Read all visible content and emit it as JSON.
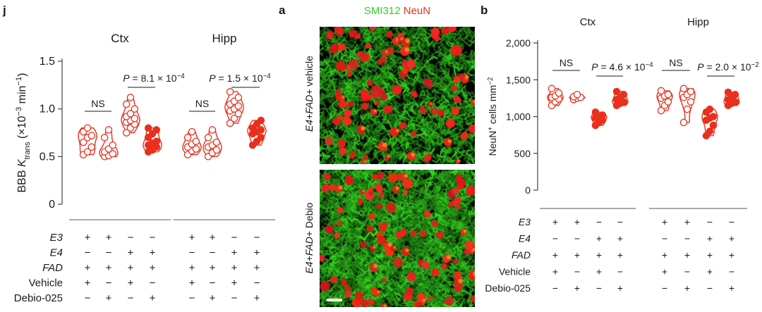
{
  "colors": {
    "red": "#e8301c",
    "green": "#2fd12c",
    "axis": "#333333"
  },
  "panel_j": {
    "letter": "j",
    "region_titles": [
      "Ctx",
      "Hipp"
    ],
    "ylabel_parts": {
      "pre": "BBB ",
      "K": "K",
      "sub": "trans",
      "mid": " (×10",
      "sup1": "−3",
      "mid2": " min",
      "sup2": "−1",
      "post": ")"
    },
    "yticks": [
      "0",
      "0.5",
      "1.0",
      "1.5"
    ],
    "ns_label": "NS",
    "p_ctx": {
      "pre": "P",
      "mid": " = 8.1 × 10",
      "sup": "−4"
    },
    "p_hipp": {
      "pre": "P",
      "mid": " = 1.5 × 10",
      "sup": "−4"
    },
    "table_rows": [
      "E3",
      "E4",
      "FAD",
      "Vehicle",
      "Debio-025"
    ],
    "table_italic": [
      true,
      true,
      true,
      false,
      false
    ],
    "table_values": [
      [
        "+",
        "+",
        "−",
        "−"
      ],
      [
        "−",
        "−",
        "+",
        "+"
      ],
      [
        "+",
        "+",
        "+",
        "+"
      ],
      [
        "+",
        "−",
        "+",
        "−"
      ],
      [
        "−",
        "+",
        "−",
        "+"
      ]
    ]
  },
  "panel_a": {
    "letter": "a",
    "stain_green": "SMI312",
    "stain_red": "NeuN",
    "top_label": {
      "geno": "E4+FAD+",
      "treat": " vehicle"
    },
    "bottom_label": {
      "geno": "E4+FAD+",
      "treat": " Debio"
    }
  },
  "panel_b": {
    "letter": "b",
    "region_titles": [
      "Ctx",
      "Hipp"
    ],
    "ylabel_parts": {
      "pre": "NeuN",
      "sup1": "+",
      "mid": " cells mm",
      "sup2": "−2"
    },
    "yticks": [
      "0",
      "500",
      "1,000",
      "1,500",
      "2,000"
    ],
    "ns_label": "NS",
    "p_ctx": {
      "pre": "P",
      "mid": " = 4.6 × 10",
      "sup": "−4"
    },
    "p_hipp": {
      "pre": "P",
      "mid": " = 2.0 × 10",
      "sup": "−2"
    },
    "table_rows": [
      "E3",
      "E4",
      "FAD",
      "Vehicle",
      "Debio-025"
    ],
    "table_italic": [
      true,
      true,
      true,
      false,
      false
    ],
    "table_values": [
      [
        "+",
        "+",
        "−",
        "−"
      ],
      [
        "−",
        "−",
        "+",
        "+"
      ],
      [
        "+",
        "+",
        "+",
        "+"
      ],
      [
        "+",
        "−",
        "+",
        "−"
      ],
      [
        "−",
        "+",
        "−",
        "+"
      ]
    ]
  },
  "chart_data": [
    {
      "type": "violin",
      "panel": "j",
      "ylabel": "BBB Ktrans (×10−3 min−1)",
      "ylim": [
        0,
        1.5
      ],
      "groups": [
        "Ctx",
        "Hipp"
      ],
      "conditions": [
        "E3 vehicle",
        "E3 Debio-025",
        "E4 vehicle",
        "E4 Debio-025"
      ],
      "series": [
        {
          "group": "Ctx",
          "condition": "E3 vehicle",
          "filled": false,
          "values": [
            0.52,
            0.55,
            0.6,
            0.65,
            0.7,
            0.72,
            0.76,
            0.8
          ]
        },
        {
          "group": "Ctx",
          "condition": "E3 Debio-025",
          "filled": false,
          "values": [
            0.5,
            0.51,
            0.53,
            0.55,
            0.58,
            0.62,
            0.7,
            0.78
          ]
        },
        {
          "group": "Ctx",
          "condition": "E4 vehicle",
          "filled": false,
          "values": [
            0.75,
            0.8,
            0.84,
            0.86,
            0.88,
            0.9,
            0.92,
            0.95,
            1.0,
            1.05,
            1.12
          ]
        },
        {
          "group": "Ctx",
          "condition": "E4 Debio-025",
          "filled": true,
          "values": [
            0.55,
            0.57,
            0.6,
            0.62,
            0.64,
            0.66,
            0.7,
            0.74,
            0.78,
            0.8
          ]
        },
        {
          "group": "Hipp",
          "condition": "E3 vehicle",
          "filled": false,
          "values": [
            0.52,
            0.56,
            0.58,
            0.6,
            0.63,
            0.66,
            0.7,
            0.76
          ]
        },
        {
          "group": "Hipp",
          "condition": "E3 Debio-025",
          "filled": false,
          "values": [
            0.5,
            0.54,
            0.57,
            0.6,
            0.62,
            0.65,
            0.7,
            0.78
          ]
        },
        {
          "group": "Hipp",
          "condition": "E4 vehicle",
          "filled": false,
          "values": [
            0.85,
            0.9,
            0.95,
            0.98,
            1.0,
            1.03,
            1.05,
            1.08,
            1.12,
            1.18
          ]
        },
        {
          "group": "Hipp",
          "condition": "E4 Debio-025",
          "filled": true,
          "values": [
            0.62,
            0.66,
            0.7,
            0.74,
            0.76,
            0.78,
            0.8,
            0.84,
            0.88
          ]
        }
      ],
      "annotations": [
        {
          "group": "Ctx",
          "between": [
            "E3 vehicle",
            "E3 Debio-025"
          ],
          "text": "NS"
        },
        {
          "group": "Ctx",
          "between": [
            "E4 vehicle",
            "E4 Debio-025"
          ],
          "text": "P = 8.1 × 10−4"
        },
        {
          "group": "Hipp",
          "between": [
            "E3 vehicle",
            "E3 Debio-025"
          ],
          "text": "NS"
        },
        {
          "group": "Hipp",
          "between": [
            "E4 vehicle",
            "E4 Debio-025"
          ],
          "text": "P = 1.5 × 10−4"
        }
      ]
    },
    {
      "type": "violin",
      "panel": "b",
      "ylabel": "NeuN+ cells mm−2",
      "ylim": [
        0,
        2000
      ],
      "groups": [
        "Ctx",
        "Hipp"
      ],
      "conditions": [
        "E3 vehicle",
        "E3 Debio-025",
        "E4 vehicle",
        "E4 Debio-025"
      ],
      "series": [
        {
          "group": "Ctx",
          "condition": "E3 vehicle",
          "filled": false,
          "values": [
            1150,
            1200,
            1240,
            1260,
            1280,
            1320,
            1380
          ]
        },
        {
          "group": "Ctx",
          "condition": "E3 Debio-025",
          "filled": false,
          "values": [
            1230,
            1250,
            1260,
            1270,
            1300
          ]
        },
        {
          "group": "Ctx",
          "condition": "E4 vehicle",
          "filled": true,
          "values": [
            880,
            920,
            950,
            980,
            1000,
            1020,
            1060
          ]
        },
        {
          "group": "Ctx",
          "condition": "E4 Debio-025",
          "filled": true,
          "values": [
            1150,
            1180,
            1200,
            1230,
            1260,
            1300,
            1340
          ]
        },
        {
          "group": "Hipp",
          "condition": "E3 vehicle",
          "filled": false,
          "values": [
            1080,
            1150,
            1200,
            1250,
            1280,
            1300,
            1350
          ]
        },
        {
          "group": "Hipp",
          "condition": "E3 Debio-025",
          "filled": false,
          "values": [
            920,
            1100,
            1200,
            1260,
            1300,
            1340,
            1380
          ]
        },
        {
          "group": "Hipp",
          "condition": "E4 vehicle",
          "filled": true,
          "values": [
            740,
            800,
            880,
            950,
            980,
            1000,
            1060,
            1100
          ]
        },
        {
          "group": "Hipp",
          "condition": "E4 Debio-025",
          "filled": true,
          "values": [
            1150,
            1180,
            1200,
            1230,
            1260,
            1300,
            1330
          ]
        }
      ],
      "annotations": [
        {
          "group": "Ctx",
          "between": [
            "E3 vehicle",
            "E3 Debio-025"
          ],
          "text": "NS"
        },
        {
          "group": "Ctx",
          "between": [
            "E4 vehicle",
            "E4 Debio-025"
          ],
          "text": "P = 4.6 × 10−4"
        },
        {
          "group": "Hipp",
          "between": [
            "E3 vehicle",
            "E3 Debio-025"
          ],
          "text": "NS"
        },
        {
          "group": "Hipp",
          "between": [
            "E4 vehicle",
            "E4 Debio-025"
          ],
          "text": "P = 2.0 × 10−2"
        }
      ]
    }
  ]
}
